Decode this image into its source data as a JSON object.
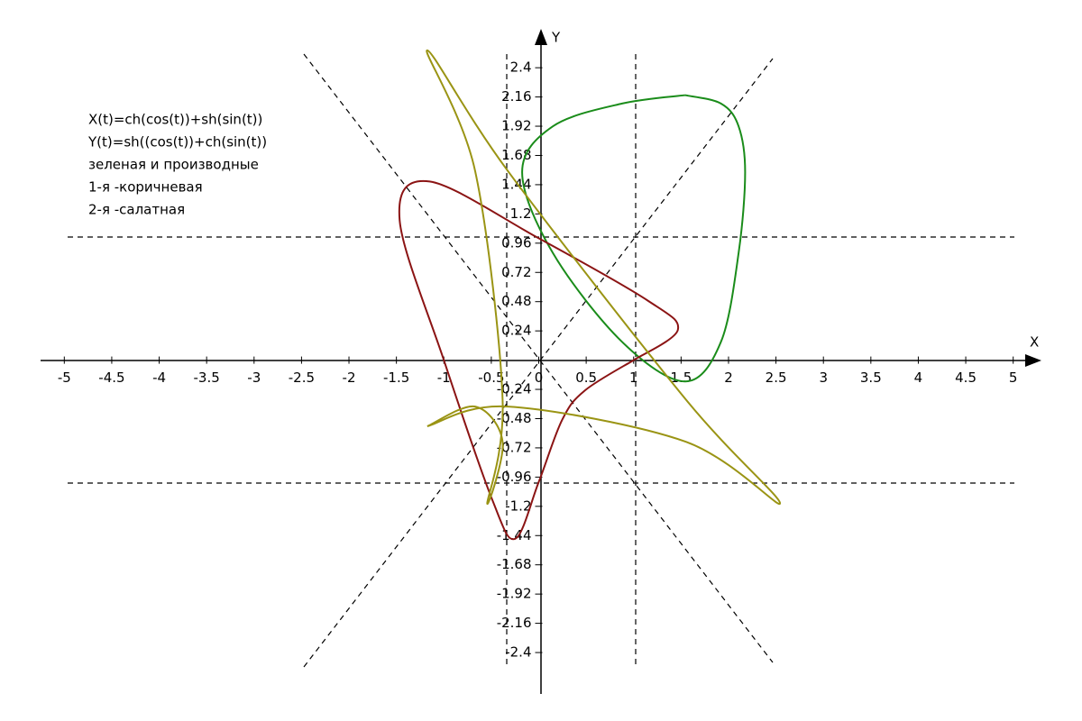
{
  "chart_data": {
    "type": "line",
    "annotations": [
      "X(t)=ch(cos(t))+sh(sin(t))",
      "Y(t)=sh((cos(t))+ch(sin(t))",
      "зеленая и производные",
      "1-я -коричневая",
      "2-я -салатная"
    ],
    "x_label": "X",
    "y_label": "Y",
    "xlim": [
      -5.25,
      5.25
    ],
    "ylim": [
      -2.74,
      2.66
    ],
    "xticks": [
      -5,
      -4.5,
      -4,
      -3.5,
      -3,
      -2.5,
      -2,
      -1.5,
      -1,
      -0.5,
      0,
      0.5,
      1,
      1.5,
      2,
      2.5,
      3,
      3.5,
      4,
      4.5,
      5
    ],
    "yticks": [
      2.4,
      2.16,
      1.92,
      1.68,
      1.44,
      1.2,
      0.96,
      0.72,
      0.48,
      0.24,
      -0.24,
      -0.48,
      -0.72,
      -0.96,
      -1.2,
      -1.44,
      -1.68,
      -1.92,
      -2.16,
      -2.4
    ],
    "series": [
      {
        "color": "#1a8c1a",
        "x": [
          1.543,
          1.92,
          2.106,
          2.175,
          2.106,
          1.92,
          1.543,
          0.878,
          0.15,
          -0.175,
          0.15,
          0.878,
          1.543
        ],
        "values": [
          2.175,
          2.106,
          1.92,
          1.543,
          0.878,
          0.15,
          -0.175,
          0.15,
          0.878,
          1.543,
          1.92,
          2.106,
          2.175
        ]
      },
      {
        "color": "#8b1414",
        "x": [
          1,
          0.488,
          0.248,
          0,
          -0.248,
          -0.488,
          -1,
          -1.466,
          -1.15,
          0,
          1.15,
          1.466,
          1
        ],
        "values": [
          0,
          -0.248,
          -0.488,
          -1,
          -1.466,
          -1.15,
          0,
          1.15,
          1.466,
          1,
          0.488,
          0.248,
          0
        ]
      },
      {
        "color": "#9a9414",
        "x": [
          -1.175,
          -0.67,
          -0.381,
          -0.543,
          -0.381,
          -0.67,
          -1.175,
          -0.324,
          1.551,
          2.543,
          1.551,
          -0.324,
          -1.175
        ],
        "values": [
          -0.543,
          -0.381,
          -0.67,
          -1.175,
          -0.324,
          1.551,
          2.543,
          1.551,
          -0.324,
          -1.175,
          -0.67,
          -0.381,
          -0.543
        ]
      }
    ]
  }
}
